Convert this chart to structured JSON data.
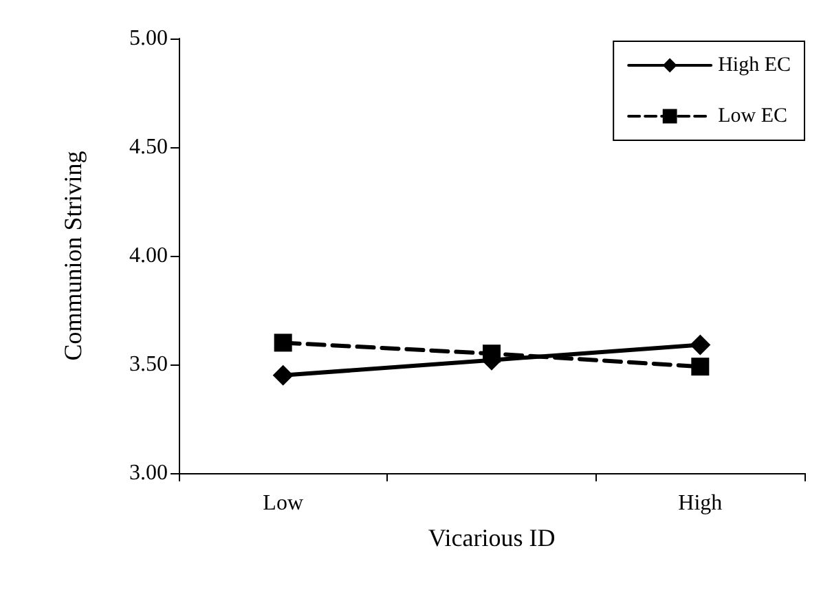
{
  "chart_data": {
    "type": "line",
    "xlabel": "Vicarious ID",
    "ylabel": "Communion Striving",
    "categories": [
      "Low",
      null,
      "High"
    ],
    "series": [
      {
        "name": "High EC",
        "color": "#000000",
        "values": [
          3.45,
          3.52,
          3.59
        ],
        "marker": "diamond",
        "line_style": "solid"
      },
      {
        "name": "Low EC",
        "color": "#000000",
        "values": [
          3.6,
          3.55,
          3.49
        ],
        "marker": "square",
        "line_style": "dashed"
      }
    ],
    "ylim": [
      3,
      5
    ],
    "yticks": [
      {
        "value": 3,
        "label": "3.00"
      },
      {
        "value": 3.5,
        "label": "3.50"
      },
      {
        "value": 4,
        "label": "4.00"
      },
      {
        "value": 4.5,
        "label": "4.50"
      },
      {
        "value": 5,
        "label": "5.00"
      }
    ],
    "grid": false,
    "legend": "top right"
  }
}
